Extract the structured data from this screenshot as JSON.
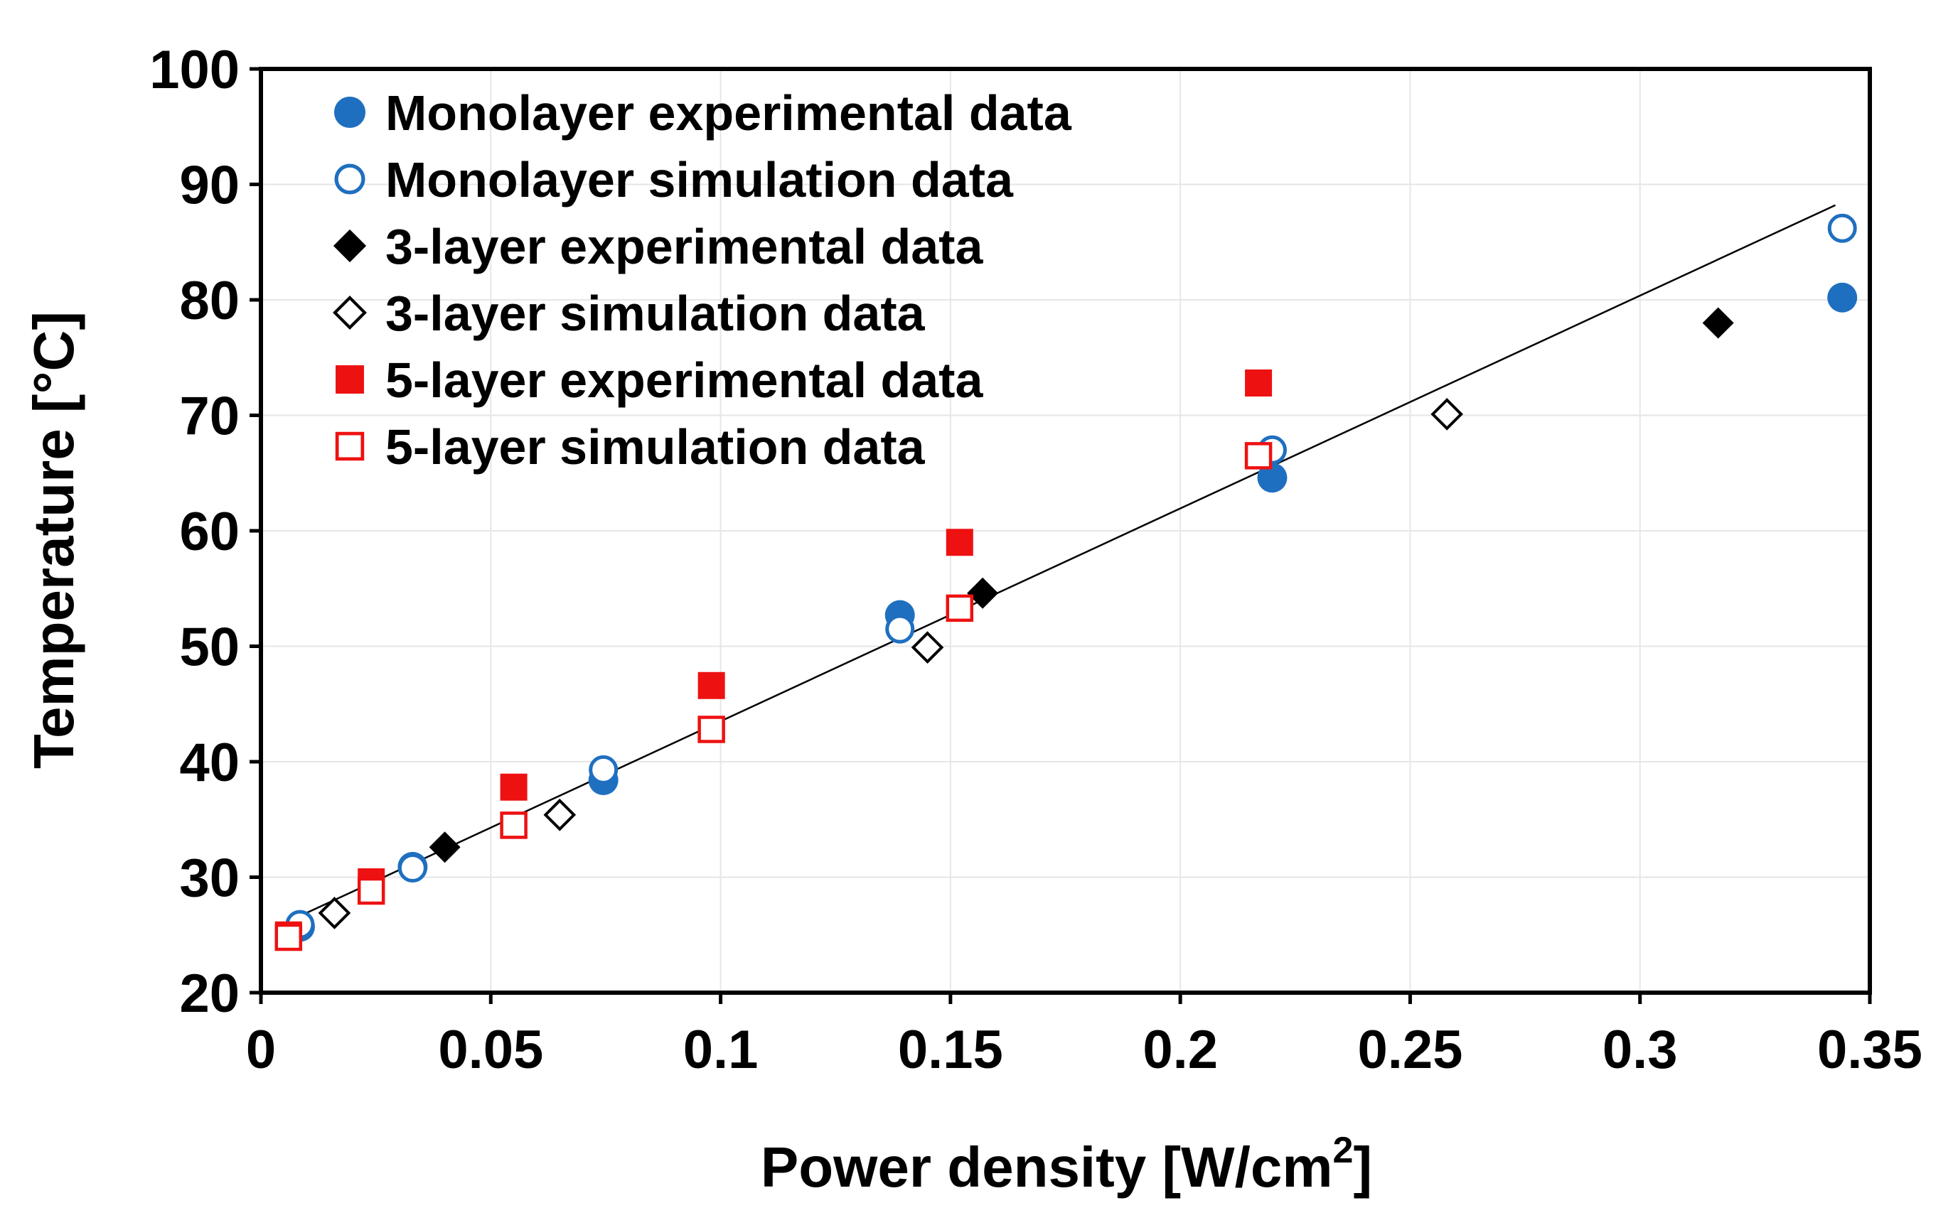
{
  "chart_data": {
    "type": "scatter",
    "xlabel": "Power density [W/cm",
    "xlabel_sup": "2",
    "xlabel_end": "]",
    "ylabel": "Temperature [°C]",
    "xlim": [
      0,
      0.35
    ],
    "ylim": [
      20,
      100
    ],
    "xticks": [
      "0",
      "0.05",
      "0.1",
      "0.15",
      "0.2",
      "0.25",
      "0.3",
      "0.35"
    ],
    "yticks": [
      "20",
      "30",
      "40",
      "50",
      "60",
      "70",
      "80",
      "90",
      "100"
    ],
    "grid": true,
    "legend_position": "top-left",
    "series": [
      {
        "name": "Monolayer experimental data",
        "marker": "circle-filled",
        "color": "#1f6fc0",
        "points": [
          [
            0.0085,
            25.7
          ],
          [
            0.033,
            30.9
          ],
          [
            0.0745,
            38.4
          ],
          [
            0.139,
            52.7
          ],
          [
            0.22,
            64.6
          ],
          [
            0.344,
            80.2
          ]
        ]
      },
      {
        "name": "Monolayer simulation data",
        "marker": "circle-open",
        "color": "#1f6fc0",
        "points": [
          [
            0.0085,
            25.9
          ],
          [
            0.033,
            30.8
          ],
          [
            0.0745,
            39.3
          ],
          [
            0.139,
            51.5
          ],
          [
            0.22,
            67.0
          ],
          [
            0.344,
            86.2
          ]
        ]
      },
      {
        "name": "3-layer experimental data",
        "marker": "diamond-filled",
        "color": "#000000",
        "points": [
          [
            0.04,
            32.6
          ],
          [
            0.157,
            54.6
          ],
          [
            0.317,
            78.0
          ]
        ]
      },
      {
        "name": "3-layer simulation data",
        "marker": "diamond-open",
        "color": "#000000",
        "points": [
          [
            0.016,
            26.9
          ],
          [
            0.065,
            35.4
          ],
          [
            0.145,
            49.9
          ],
          [
            0.258,
            70.1
          ]
        ]
      },
      {
        "name": "5-layer experimental data",
        "marker": "square-filled",
        "color": "#ee1111",
        "points": [
          [
            0.006,
            25.0
          ],
          [
            0.024,
            29.6
          ],
          [
            0.055,
            37.8
          ],
          [
            0.098,
            46.6
          ],
          [
            0.152,
            59.0
          ],
          [
            0.217,
            72.8
          ]
        ]
      },
      {
        "name": "5-layer simulation data",
        "marker": "square-open",
        "color": "#ee1111",
        "points": [
          [
            0.006,
            24.8
          ],
          [
            0.024,
            28.8
          ],
          [
            0.055,
            34.5
          ],
          [
            0.098,
            42.8
          ],
          [
            0.152,
            53.3
          ],
          [
            0.217,
            66.5
          ]
        ]
      }
    ],
    "trendline": {
      "color": "#000000",
      "points": [
        [
          0.005,
          26.0
        ],
        [
          0.3425,
          88.2
        ]
      ]
    }
  }
}
